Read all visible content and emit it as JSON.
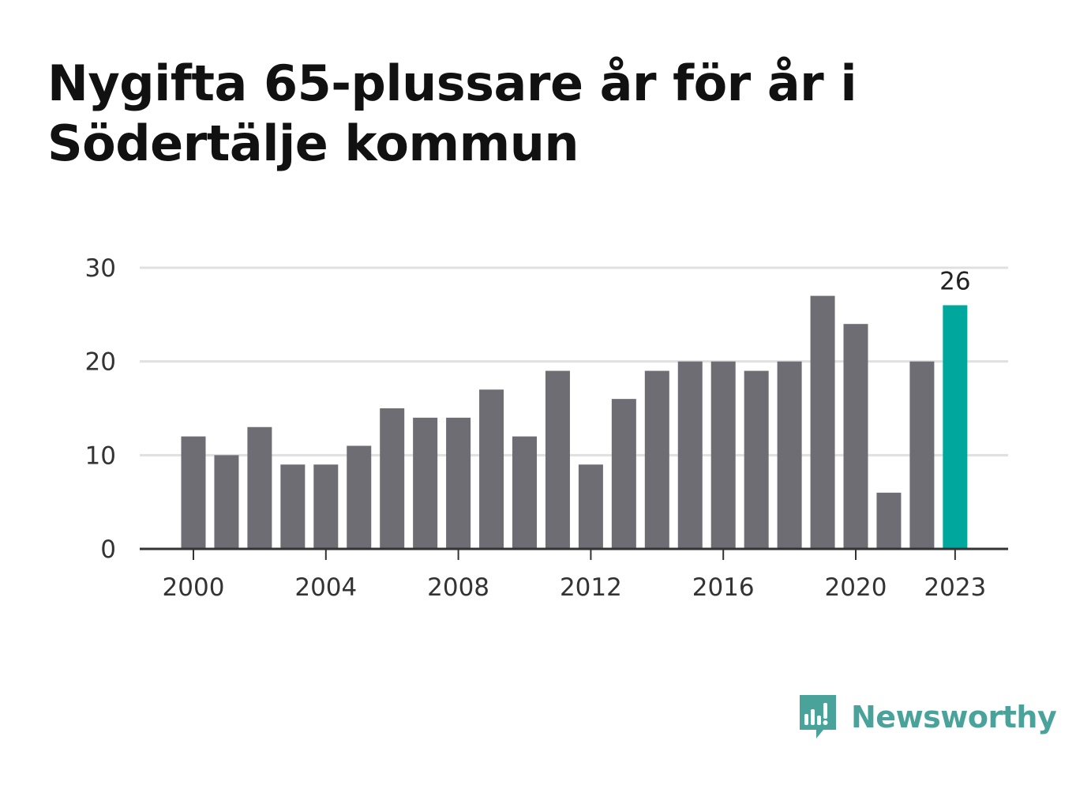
{
  "title": "Nygifta 65-plussare år för år i Södertälje kommun",
  "brand": {
    "name": "Newsworthy",
    "icon": "newsworthy-logo-icon",
    "color": "#4aa39a"
  },
  "colors": {
    "bar": "#6e6d74",
    "highlight": "#00a79d",
    "grid": "#e0e0e0",
    "axis": "#333333"
  },
  "chart_data": {
    "type": "bar",
    "title": "Nygifta 65-plussare år för år i Södertälje kommun",
    "categories": [
      2000,
      2001,
      2002,
      2003,
      2004,
      2005,
      2006,
      2007,
      2008,
      2009,
      2010,
      2011,
      2012,
      2013,
      2014,
      2015,
      2016,
      2017,
      2018,
      2019,
      2020,
      2021,
      2022,
      2023
    ],
    "values": [
      12,
      10,
      13,
      9,
      9,
      11,
      15,
      14,
      14,
      17,
      12,
      19,
      9,
      16,
      19,
      20,
      20,
      19,
      20,
      27,
      24,
      6,
      20,
      26
    ],
    "highlight": {
      "category": 2023,
      "label": "26"
    },
    "x_ticks": [
      2000,
      2004,
      2008,
      2012,
      2016,
      2020,
      2023
    ],
    "y_ticks": [
      0,
      10,
      20,
      30
    ],
    "ylim": [
      0,
      30
    ],
    "xlabel": "",
    "ylabel": "",
    "grid": true,
    "legend": "none"
  }
}
